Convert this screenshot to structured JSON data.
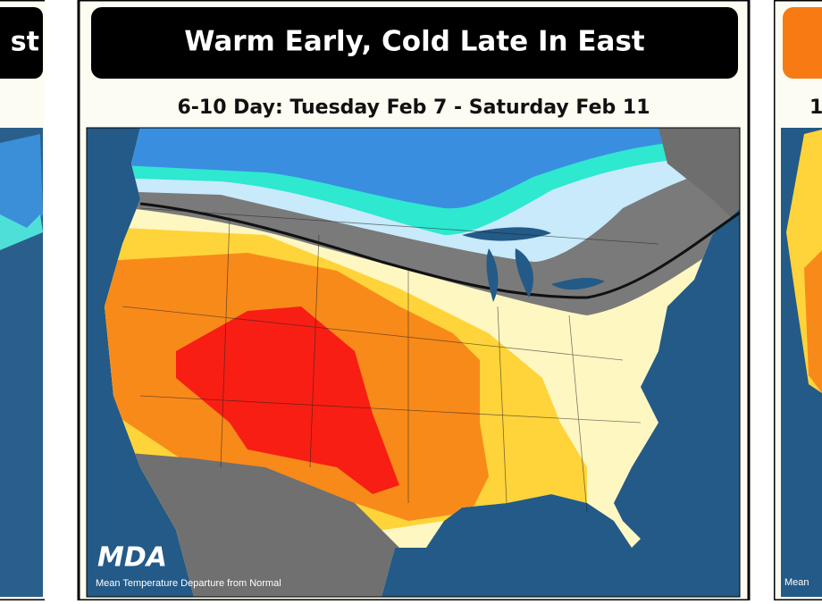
{
  "left_panel": {
    "title": "st"
  },
  "main_panel": {
    "title": "Warm Early, Cold Late In East",
    "subtitle": "6-10 Day: Tuesday Feb 7 - Saturday Feb 11",
    "logo": "MDA",
    "caption": "Mean Temperature Departure from Normal"
  },
  "right_panel": {
    "subtitle": "1",
    "caption": "Mean"
  }
}
